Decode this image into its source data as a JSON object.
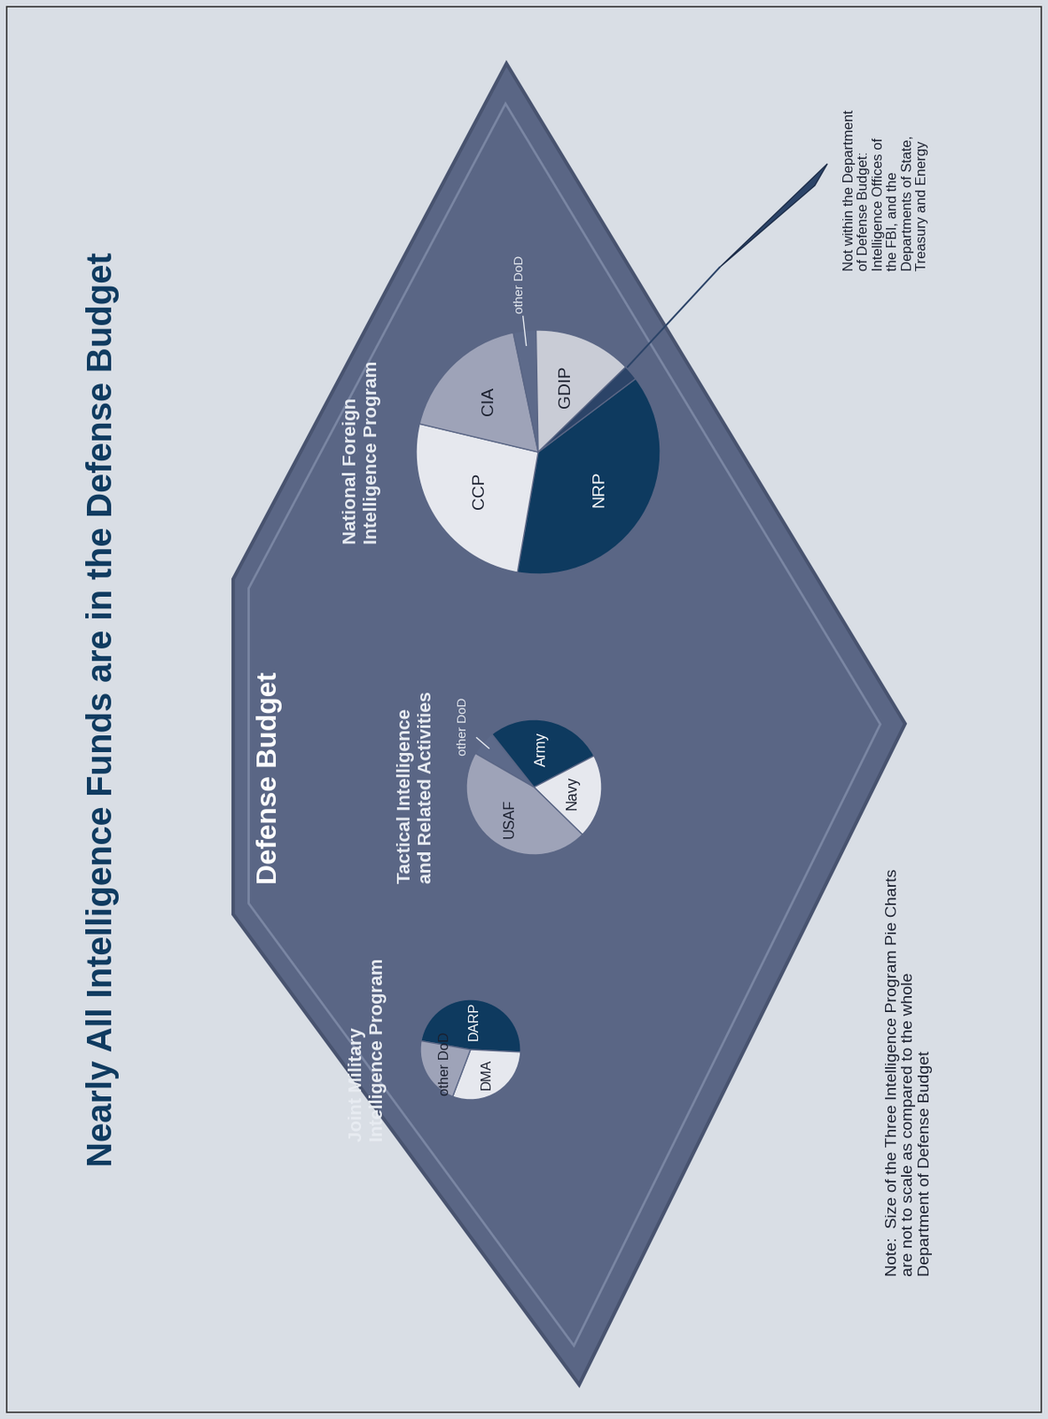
{
  "title": "Nearly All Intelligence Funds are in the Defense Budget",
  "subtitle": "Defense Budget",
  "annotations": [
    "Not within the Department\nof Defense Budget:\nIntelligence Offices of\nthe FBI, and the\nDepartments of State,\nTreasury and Energy",
    "Note:  Size of the Three Intelligence Program Pie Charts\nare not to scale as compared to the whole\nDepartment of Defense Budget"
  ],
  "chart_data": [
    {
      "type": "pie",
      "title": "Joint Military\nIntelligence Program",
      "categories": [
        "DARP",
        "DMA",
        "other DoD"
      ],
      "values": [
        48,
        30,
        22
      ],
      "colors": [
        "#0e3a5f",
        "#e6e8ee",
        "#9ea3b8"
      ]
    },
    {
      "type": "pie",
      "title": "Tactical Intelligence\nand Related Activities",
      "categories": [
        "other DoD",
        "Army",
        "Navy",
        "USAF"
      ],
      "values": [
        6,
        28,
        20,
        46
      ],
      "colors": [
        "#5d6a8a",
        "#0e3a5f",
        "#e6e8ee",
        "#9ea3b8"
      ]
    },
    {
      "type": "pie",
      "title": "National Foreign\nIntelligence Program",
      "categories": [
        "NRP",
        "CCP",
        "CIA",
        "other DoD",
        "GDIP",
        null
      ],
      "values": [
        38,
        26,
        18,
        3,
        13,
        2
      ],
      "colors": [
        "#0e3a5f",
        "#e6e8ee",
        "#9ea3b8",
        "#5d6a8a",
        "#c9ccd6",
        "#2c4468"
      ]
    }
  ]
}
